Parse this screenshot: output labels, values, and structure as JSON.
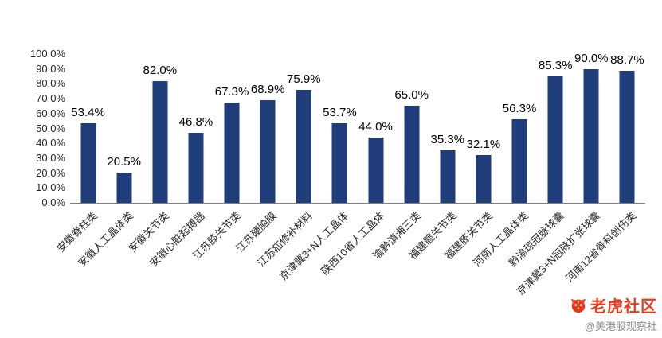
{
  "chart_data": {
    "type": "bar",
    "title": "",
    "xlabel": "",
    "ylabel": "",
    "ylim": [
      0,
      100
    ],
    "grid": false,
    "legend": "none",
    "bar_color": "#1F3D7A",
    "yticks": [
      "0.0%",
      "10.0%",
      "20.0%",
      "30.0%",
      "40.0%",
      "50.0%",
      "60.0%",
      "70.0%",
      "80.0%",
      "90.0%",
      "100.0%"
    ],
    "categories": [
      "安徽脊柱类",
      "安徽人工晶体类",
      "安徽关节类",
      "安徽心脏起搏器",
      "江苏膝关节类",
      "江苏硬脑膜",
      "江苏疝修补材料",
      "京津冀3+N人工晶体",
      "陕西10省人工晶体",
      "渝黔滇湘三类",
      "福建髋关节类",
      "福建膝关节类",
      "河南人工晶体类",
      "黔渝琼冠脉球囊",
      "京津冀3+N冠脉扩张球囊",
      "河南12省骨科创伤类"
    ],
    "values": [
      53.4,
      20.5,
      82.0,
      46.8,
      67.3,
      68.9,
      75.9,
      53.7,
      44.0,
      65.0,
      35.3,
      32.1,
      56.3,
      85.3,
      90.0,
      88.7
    ],
    "value_labels": [
      "53.4%",
      "20.5%",
      "82.0%",
      "46.8%",
      "67.3%",
      "68.9%",
      "75.9%",
      "53.7%",
      "44.0%",
      "65.0%",
      "35.3%",
      "32.1%",
      "56.3%",
      "85.3%",
      "90.0%",
      "88.7%"
    ]
  },
  "watermark": {
    "brand": "老虎社区",
    "handle": "@美港股观察社",
    "brand_color": "#E8391D",
    "handle_color": "#8C8C8C"
  }
}
